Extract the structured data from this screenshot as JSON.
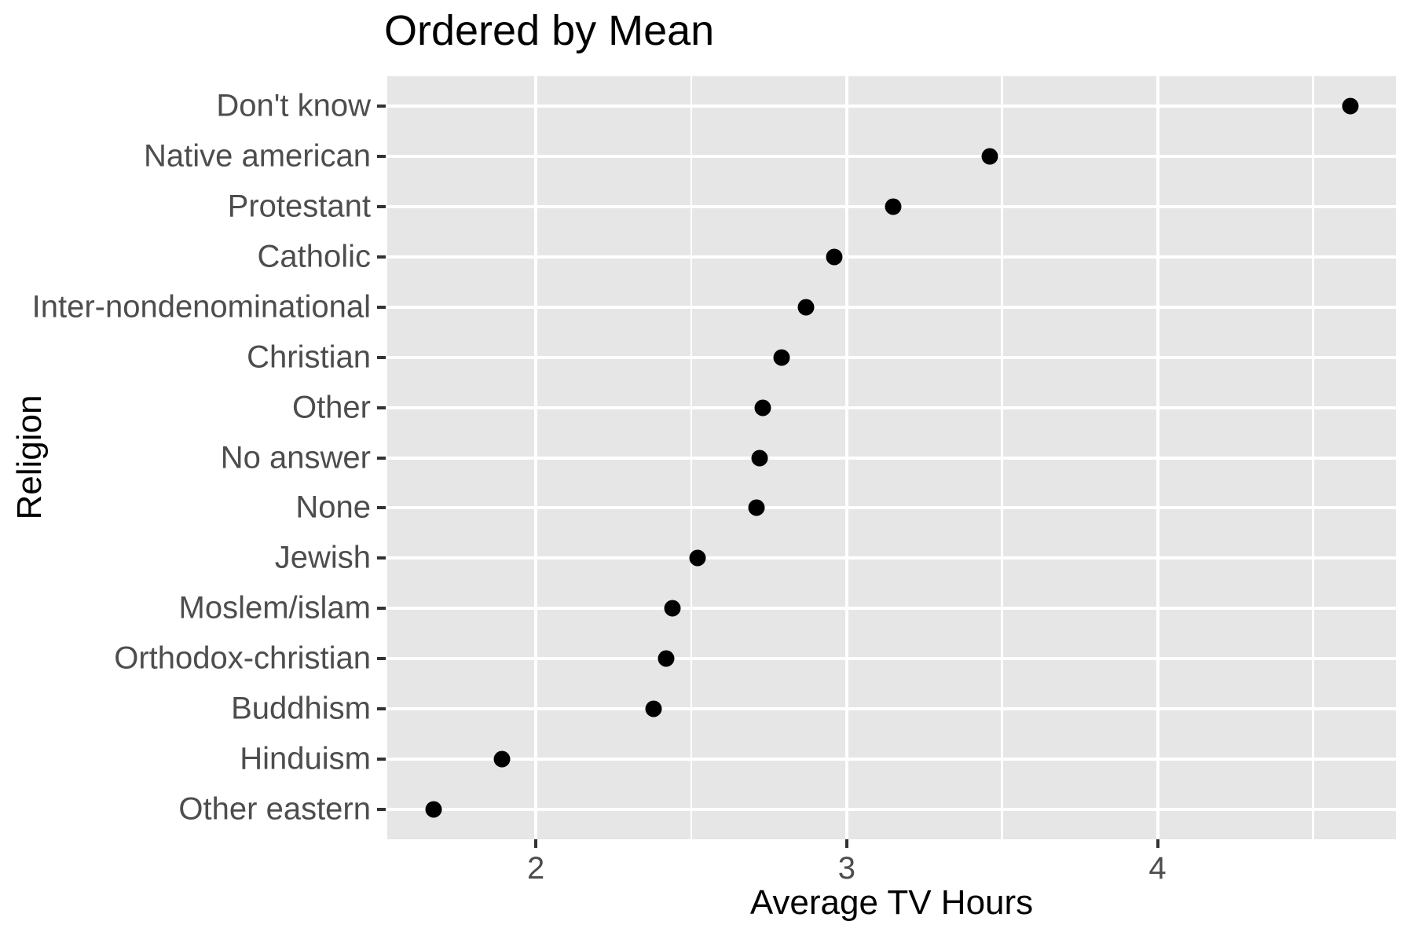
{
  "chart_data": {
    "type": "scatter",
    "subtype": "dot-plot",
    "title": "Ordered by Mean",
    "xlabel": "Average TV Hours",
    "ylabel": "Religion",
    "categories": [
      "Don't know",
      "Native american",
      "Protestant",
      "Catholic",
      "Inter-nondenominational",
      "Christian",
      "Other",
      "No answer",
      "None",
      "Jewish",
      "Moslem/islam",
      "Orthodox-christian",
      "Buddhism",
      "Hinduism",
      "Other eastern"
    ],
    "values": [
      4.62,
      3.46,
      3.15,
      2.96,
      2.87,
      2.79,
      2.73,
      2.72,
      2.71,
      2.52,
      2.44,
      2.42,
      2.38,
      1.89,
      1.67
    ],
    "xlim": [
      1.522,
      4.767
    ],
    "x_major_ticks": [
      2,
      3,
      4
    ],
    "x_tick_labels": [
      "2",
      "3",
      "4"
    ],
    "x_minor_gridlines": [
      2.5,
      3.5,
      4.5
    ],
    "grid": true,
    "legend": false,
    "point_color": "#000000",
    "panel_color": "#e6e6e6",
    "gridline_color": "#ffffff",
    "tick_text_color": "#4d4d4d",
    "title_color": "#000000"
  }
}
